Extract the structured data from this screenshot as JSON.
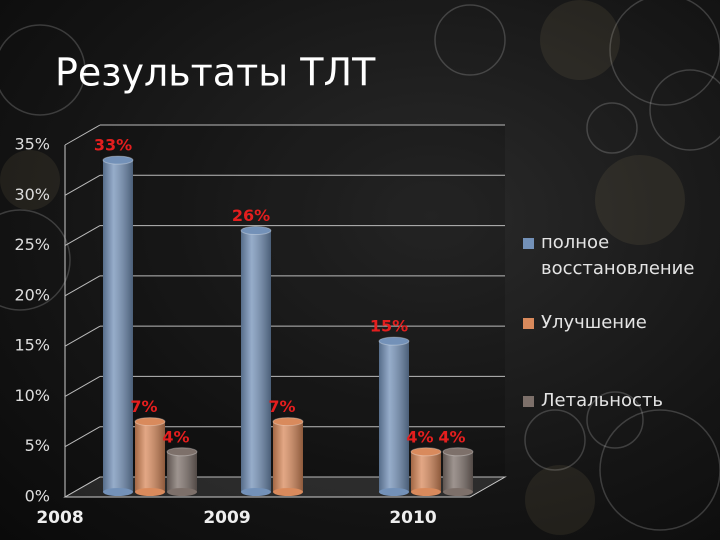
{
  "chart_data": {
    "type": "bar3d",
    "title": "Результаты ТЛТ",
    "categories": [
      "2008",
      "2009",
      "2010"
    ],
    "series": [
      {
        "name": "полное восстановление",
        "color": "#7391b8",
        "values": [
          33,
          26,
          15
        ],
        "value_labels": [
          "33%",
          "26%",
          "15%"
        ]
      },
      {
        "name": "Улучшение",
        "color": "#d98a5c",
        "values": [
          7,
          7,
          4
        ],
        "value_labels": [
          "7%",
          "7%",
          "4%"
        ]
      },
      {
        "name": "Летальность",
        "color": "#7d706a",
        "values": [
          4,
          null,
          4
        ],
        "value_labels": [
          "4%",
          null,
          "4%"
        ]
      }
    ],
    "ylim": [
      0,
      35
    ],
    "yticks": [
      {
        "value": 0,
        "label": "0%"
      },
      {
        "value": 5,
        "label": "5%"
      },
      {
        "value": 10,
        "label": "10%"
      },
      {
        "value": 15,
        "label": "15%"
      },
      {
        "value": 20,
        "label": "20%"
      },
      {
        "value": 25,
        "label": "25%"
      },
      {
        "value": 30,
        "label": "30%"
      },
      {
        "value": 35,
        "label": "35%"
      }
    ],
    "grid": true,
    "legend": "right"
  }
}
